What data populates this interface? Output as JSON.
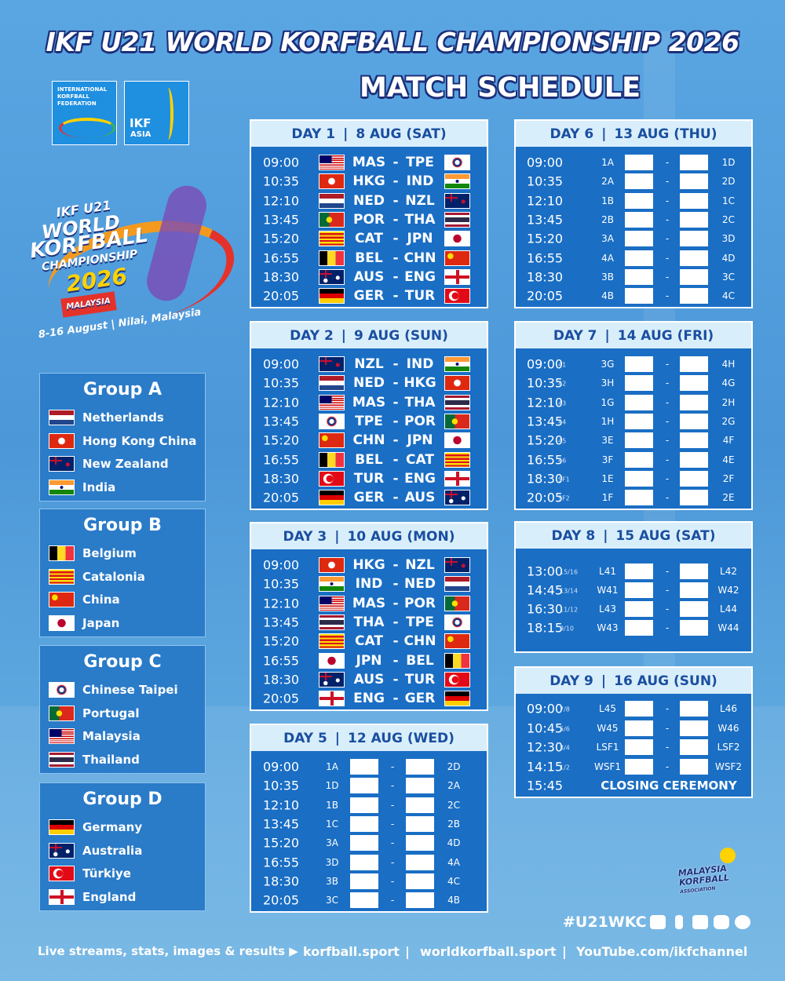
{
  "header": {
    "title": "IKF U21 WORLD KORFBALL CHAMPIONSHIP 2026",
    "subtitle": "MATCH SCHEDULE"
  },
  "logos": {
    "ikf": "INTERNATIONAL KORFBALL FEDERATION",
    "asia_top": "IKF",
    "asia_bottom": "ASIA"
  },
  "event_logo": {
    "line1": "IKF U21",
    "line2": "WORLD",
    "line3": "KORFBALL",
    "line4": "CHAMPIONSHIP",
    "year": "2026",
    "country": "MALAYSIA",
    "dates": "8-16 August | Nilai, Malaysia"
  },
  "separators": {
    "day": "|",
    "match": "-",
    "link": "|"
  },
  "groups": [
    {
      "name": "Group A",
      "teams": [
        "Netherlands",
        "Hong Kong China",
        "New Zealand",
        "India"
      ]
    },
    {
      "name": "Group B",
      "teams": [
        "Belgium",
        "Catalonia",
        "China",
        "Japan"
      ]
    },
    {
      "name": "Group C",
      "teams": [
        "Chinese Taipei",
        "Portugal",
        "Malaysia",
        "Thailand"
      ]
    },
    {
      "name": "Group D",
      "teams": [
        "Germany",
        "Australia",
        "Türkiye",
        "England"
      ]
    }
  ],
  "days": [
    {
      "label": "DAY 1",
      "date": "8 AUG (SAT)",
      "matches": [
        {
          "time": "09:00",
          "home": "MAS",
          "away": "TPE"
        },
        {
          "time": "10:35",
          "home": "HKG",
          "away": "IND"
        },
        {
          "time": "12:10",
          "home": "NED",
          "away": "NZL"
        },
        {
          "time": "13:45",
          "home": "POR",
          "away": "THA"
        },
        {
          "time": "15:20",
          "home": "CAT",
          "away": "JPN"
        },
        {
          "time": "16:55",
          "home": "BEL",
          "away": "CHN"
        },
        {
          "time": "18:30",
          "home": "AUS",
          "away": "ENG"
        },
        {
          "time": "20:05",
          "home": "GER",
          "away": "TUR"
        }
      ]
    },
    {
      "label": "DAY 2",
      "date": "9 AUG (SUN)",
      "matches": [
        {
          "time": "09:00",
          "home": "NZL",
          "away": "IND"
        },
        {
          "time": "10:35",
          "home": "NED",
          "away": "HKG"
        },
        {
          "time": "12:10",
          "home": "MAS",
          "away": "THA"
        },
        {
          "time": "13:45",
          "home": "TPE",
          "away": "POR"
        },
        {
          "time": "15:20",
          "home": "CHN",
          "away": "JPN"
        },
        {
          "time": "16:55",
          "home": "BEL",
          "away": "CAT"
        },
        {
          "time": "18:30",
          "home": "TUR",
          "away": "ENG"
        },
        {
          "time": "20:05",
          "home": "GER",
          "away": "AUS"
        }
      ]
    },
    {
      "label": "DAY 3",
      "date": "10 AUG (MON)",
      "matches": [
        {
          "time": "09:00",
          "home": "HKG",
          "away": "NZL"
        },
        {
          "time": "10:35",
          "home": "IND",
          "away": "NED"
        },
        {
          "time": "12:10",
          "home": "MAS",
          "away": "POR"
        },
        {
          "time": "13:45",
          "home": "THA",
          "away": "TPE"
        },
        {
          "time": "15:20",
          "home": "CAT",
          "away": "CHN"
        },
        {
          "time": "16:55",
          "home": "JPN",
          "away": "BEL"
        },
        {
          "time": "18:30",
          "home": "AUS",
          "away": "TUR"
        },
        {
          "time": "20:05",
          "home": "ENG",
          "away": "GER"
        }
      ]
    },
    {
      "label": "DAY 5",
      "date": "12 AUG (WED)",
      "matches": [
        {
          "time": "09:00",
          "home": "1A",
          "away": "2D"
        },
        {
          "time": "10:35",
          "home": "1D",
          "away": "2A"
        },
        {
          "time": "12:10",
          "home": "1B",
          "away": "2C"
        },
        {
          "time": "13:45",
          "home": "1C",
          "away": "2B"
        },
        {
          "time": "15:20",
          "home": "3A",
          "away": "4D"
        },
        {
          "time": "16:55",
          "home": "3D",
          "away": "4A"
        },
        {
          "time": "18:30",
          "home": "3B",
          "away": "4C"
        },
        {
          "time": "20:05",
          "home": "3C",
          "away": "4B"
        }
      ]
    },
    {
      "label": "DAY 6",
      "date": "13 AUG (THU)",
      "matches": [
        {
          "time": "09:00",
          "home": "1A",
          "away": "1D"
        },
        {
          "time": "10:35",
          "home": "2A",
          "away": "2D"
        },
        {
          "time": "12:10",
          "home": "1B",
          "away": "1C"
        },
        {
          "time": "13:45",
          "home": "2B",
          "away": "2C"
        },
        {
          "time": "15:20",
          "home": "3A",
          "away": "3D"
        },
        {
          "time": "16:55",
          "home": "4A",
          "away": "4D"
        },
        {
          "time": "18:30",
          "home": "3B",
          "away": "3C"
        },
        {
          "time": "20:05",
          "home": "4B",
          "away": "4C"
        }
      ]
    },
    {
      "label": "DAY 7",
      "date": "14 AUG (FRI)",
      "matches": [
        {
          "time": "09:00",
          "game": "41",
          "home": "3G",
          "away": "4H"
        },
        {
          "time": "10:35",
          "game": "42",
          "home": "3H",
          "away": "4G"
        },
        {
          "time": "12:10",
          "game": "43",
          "home": "1G",
          "away": "2H"
        },
        {
          "time": "13:45",
          "game": "44",
          "home": "1H",
          "away": "2G"
        },
        {
          "time": "15:20",
          "game": "45",
          "home": "3E",
          "away": "4F"
        },
        {
          "time": "16:55",
          "game": "46",
          "home": "3F",
          "away": "4E"
        },
        {
          "time": "18:30",
          "game": "SF1",
          "home": "1E",
          "away": "2F"
        },
        {
          "time": "20:05",
          "game": "SF2",
          "home": "1F",
          "away": "2E"
        }
      ]
    },
    {
      "label": "DAY 8",
      "date": "15 AUG (SAT)",
      "matches": [
        {
          "time": "13:00",
          "game": "15/16",
          "home": "L41",
          "away": "L42"
        },
        {
          "time": "14:45",
          "game": "13/14",
          "home": "W41",
          "away": "W42"
        },
        {
          "time": "16:30",
          "game": "11/12",
          "home": "L43",
          "away": "L44"
        },
        {
          "time": "18:15",
          "game": "9/10",
          "home": "W43",
          "away": "W44"
        }
      ]
    },
    {
      "label": "DAY 9",
      "date": "16 AUG (SUN)",
      "matches": [
        {
          "time": "09:00",
          "game": "7/8",
          "home": "L45",
          "away": "L46"
        },
        {
          "time": "10:45",
          "game": "5/6",
          "home": "W45",
          "away": "W46"
        },
        {
          "time": "12:30",
          "game": "3/4",
          "home": "LSF1",
          "away": "LSF2"
        },
        {
          "time": "14:15",
          "game": "1/2",
          "home": "WSF1",
          "away": "WSF2"
        },
        {
          "time": "15:45",
          "event": "CLOSING CEREMONY"
        }
      ]
    }
  ],
  "footer": {
    "hashtag": "#U21WKC",
    "cta": "Live streams, stats, images & results ▶",
    "links": [
      "korfball.sport",
      "worldkorfball.sport",
      "YouTube.com/ikfchannel"
    ]
  },
  "association_logo": {
    "line1": "MALAYSIA",
    "line2": "KORFBALL",
    "line3": "ASSOCIATION"
  }
}
